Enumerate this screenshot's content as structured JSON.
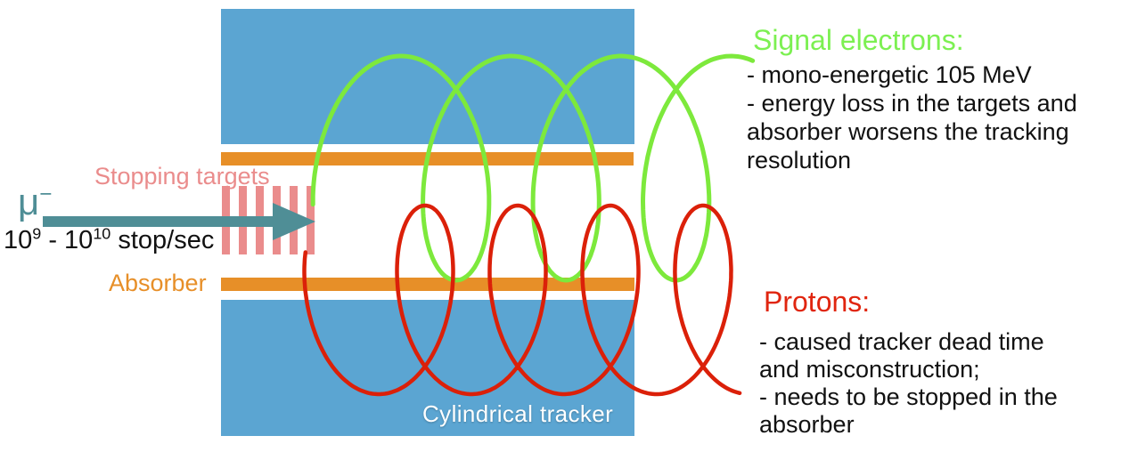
{
  "beam": {
    "particle_symbol": "μ",
    "particle_charge": "−",
    "rate_mantissa1": "10",
    "rate_exp1": "9",
    "rate_dash": " - ",
    "rate_mantissa2": "10",
    "rate_exp2": "10",
    "rate_unit": " stop/sec"
  },
  "apparatus": {
    "stopping_targets_label": "Stopping targets",
    "stopping_targets_count": 6,
    "absorber_label": "Absorber",
    "tracker_label": "Cylindrical tracker"
  },
  "annotations": {
    "signal_electrons": {
      "title": "Signal electrons:",
      "lines": [
        "- mono-energetic 105 MeV",
        "- energy loss in the targets and",
        "absorber worsens the tracking",
        "resolution"
      ]
    },
    "protons": {
      "title": "Protons:",
      "lines": [
        "- caused tracker dead time",
        "and misconstruction;",
        "- needs to be stopped in the",
        "absorber"
      ]
    }
  },
  "colors": {
    "tracker_blue": "#5BA5D2",
    "absorber_orange": "#E78F28",
    "target_pink": "#EA8C8C",
    "beam_teal": "#4F8E96",
    "electron_green": "#7DE93C",
    "proton_red": "#DB2009",
    "signal_title_green": "#7CF052",
    "protons_title_red": "#E0250F",
    "body_text": "#111111",
    "tracker_label_white": "#FFFFFF"
  }
}
